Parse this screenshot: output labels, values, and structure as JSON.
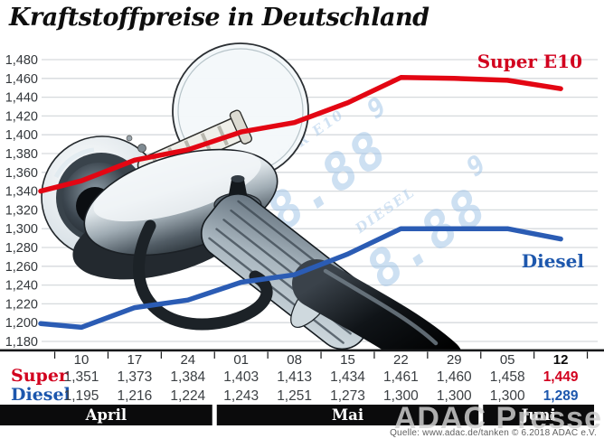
{
  "title": "Kraftstoffpreise in Deutschland",
  "watermark": "ADAC Presse",
  "source": "Quelle: www.adac.de/tanken  © 6.2018  ADAC e.V.",
  "legend": {
    "super_e10": "Super E10",
    "diesel": "Diesel"
  },
  "pump_display": [
    {
      "label": "SUPER E10",
      "digits": "8.88",
      "sup_digit": "9"
    },
    {
      "label": "DIESEL",
      "digits": "8.88",
      "sup_digit": "9"
    }
  ],
  "table": {
    "row_labels": [
      "Super",
      "Diesel"
    ]
  },
  "chart_data": {
    "type": "line",
    "title": "Kraftstoffpreise in Deutschland",
    "x_tick_labels": [
      "10",
      "17",
      "24",
      "01",
      "08",
      "15",
      "22",
      "29",
      "05",
      "12"
    ],
    "months": [
      {
        "label": "April",
        "col_start": 0,
        "col_end": 2
      },
      {
        "label": "Mai",
        "col_start": 3,
        "col_end": 7
      },
      {
        "label": "Juni",
        "col_start": 8,
        "col_end": 9
      }
    ],
    "ylim": [
      1180,
      1480
    ],
    "ytick_step": 20,
    "grid": true,
    "legend_position": "right-of-lines",
    "series": [
      {
        "name": "Super E10",
        "table_label": "Super",
        "color": "#e30613",
        "label_color": "#d2001e",
        "lead_in_value": 1340,
        "values": [
          1351,
          1373,
          1384,
          1403,
          1413,
          1434,
          1461,
          1460,
          1458,
          1449
        ]
      },
      {
        "name": "Diesel",
        "table_label": "Diesel",
        "color": "#2b5cb4",
        "label_color": "#1d57ad",
        "lead_in_value": 1199,
        "values": [
          1195,
          1216,
          1224,
          1243,
          1251,
          1273,
          1300,
          1300,
          1300,
          1289
        ]
      }
    ]
  }
}
